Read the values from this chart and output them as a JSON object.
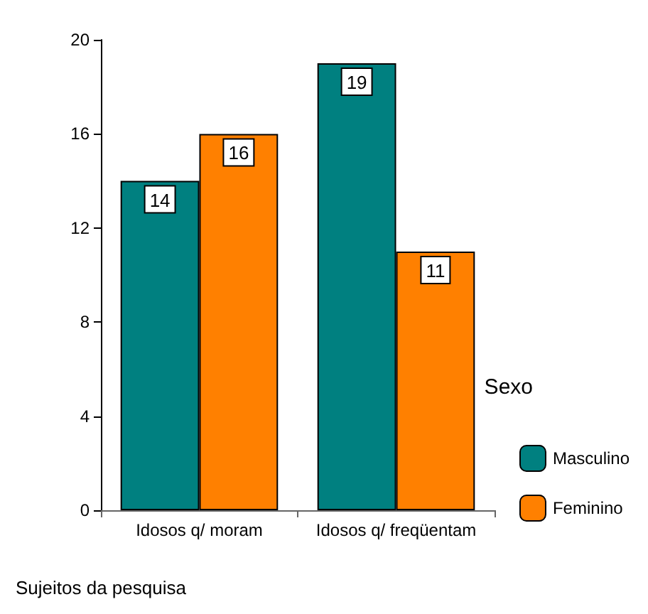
{
  "chart_data": {
    "type": "bar",
    "xlabel": "Sujeitos da pesquisa",
    "legend_title": "Sexo",
    "categories": [
      "Idosos q/ moram",
      "Idosos q/ freqüentam"
    ],
    "series": [
      {
        "name": "Masculino",
        "color": "#008080",
        "values": [
          14,
          19
        ]
      },
      {
        "name": "Feminino",
        "color": "#ff8000",
        "values": [
          16,
          11
        ]
      }
    ],
    "ylim": [
      0,
      20
    ],
    "yticks": [
      0,
      4,
      8,
      12,
      16,
      20
    ],
    "data_labels": true,
    "grid": false,
    "legend": "right"
  }
}
